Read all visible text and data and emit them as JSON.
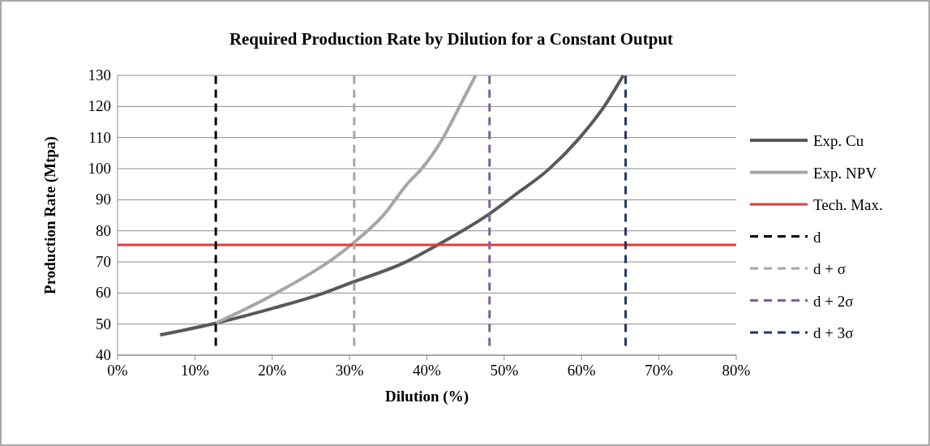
{
  "chart_data": {
    "type": "line",
    "title": "Required Production Rate by Dilution  for a Constant Output",
    "xlabel": "Dilution  (%)",
    "ylabel": "Production Rate (Mtpa)",
    "xlim": [
      0,
      80
    ],
    "xticks": [
      {
        "value": 0,
        "label": "0%"
      },
      {
        "value": 10,
        "label": "10%"
      },
      {
        "value": 20,
        "label": "20%"
      },
      {
        "value": 30,
        "label": "30%"
      },
      {
        "value": 40,
        "label": "40%"
      },
      {
        "value": 50,
        "label": "50%"
      },
      {
        "value": 60,
        "label": "60%"
      },
      {
        "value": 70,
        "label": "70%"
      },
      {
        "value": 80,
        "label": "80%"
      }
    ],
    "ylim": [
      40,
      130
    ],
    "yticks": [
      40,
      50,
      60,
      70,
      80,
      90,
      100,
      110,
      120,
      130
    ],
    "grid": "y",
    "legend": "right",
    "line_style": "solid",
    "series": [
      {
        "name": "Exp. Cu",
        "color": "#595959",
        "x": [
          5.5,
          12.7,
          20.1,
          26.7,
          30.2,
          37.2,
          41.4,
          48.1,
          51.2,
          55.8,
          59.6,
          62.9,
          65.4
        ],
        "values": [
          46.5,
          50.3,
          55.1,
          60,
          63.3,
          69.9,
          75.5,
          85.5,
          91.2,
          99.9,
          109.5,
          119.9,
          130
        ]
      },
      {
        "name": "Exp. NPV",
        "color": "#a6a6a6",
        "x": [
          12.7,
          20.4,
          30.2,
          34.4,
          37.6,
          39.3,
          42.1,
          44.2,
          46.3
        ],
        "values": [
          50.3,
          59.8,
          75.5,
          85.1,
          95.5,
          99.9,
          109.9,
          119.9,
          130
        ]
      },
      {
        "name": "Tech. Max.",
        "color": "#e03c3c",
        "x": [
          0,
          80
        ],
        "values": [
          75.5,
          75.5
        ]
      },
      {
        "name": "d",
        "color": "#000000",
        "line_style": "dashed",
        "x": [
          12.7,
          12.7
        ],
        "values": [
          43,
          130
        ]
      },
      {
        "name": "d + σ",
        "color": "#a6a6a6",
        "line_style": "dashed",
        "x": [
          30.6,
          30.6
        ],
        "values": [
          43,
          130
        ]
      },
      {
        "name": "d + 2σ",
        "color": "#7f5fa0",
        "line_style": "dashed",
        "x": [
          48.1,
          48.1
        ],
        "values": [
          43,
          130
        ]
      },
      {
        "name": "d + 3σ",
        "color": "#1f3864",
        "line_style": "dashed",
        "x": [
          65.7,
          65.7
        ],
        "values": [
          43,
          130
        ]
      }
    ]
  }
}
